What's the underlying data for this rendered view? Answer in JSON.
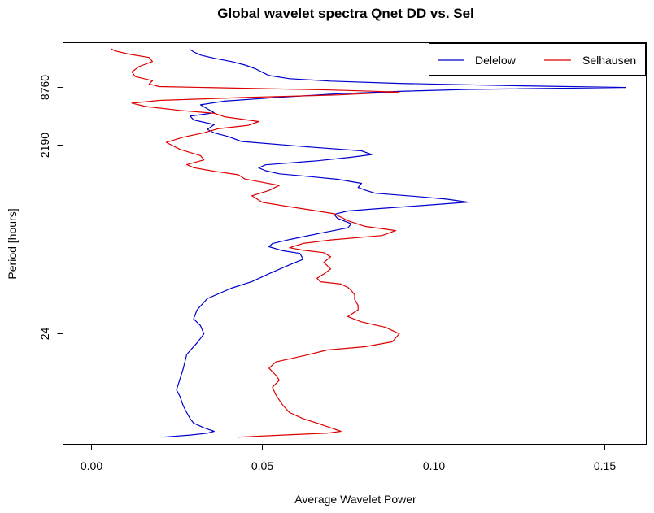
{
  "chart_data": {
    "type": "line",
    "title": "Global wavelet spectra  Qnet DD vs. Sel",
    "xlabel": "Average Wavelet Power",
    "ylabel": "Period [hours]",
    "xlim": [
      -0.008,
      0.162
    ],
    "xticks": [
      {
        "value": 0.0,
        "label": "0.00"
      },
      {
        "value": 0.05,
        "label": "0.05"
      },
      {
        "value": 0.1,
        "label": "0.10"
      },
      {
        "value": 0.15,
        "label": "0.15"
      }
    ],
    "yscale": "log2",
    "ylim": [
      1.7,
      25000
    ],
    "yticks": [
      {
        "value": 24,
        "label": "24"
      },
      {
        "value": 2190,
        "label": "2190"
      },
      {
        "value": 8760,
        "label": "8760"
      }
    ],
    "grid": false,
    "legend_position": "top-right",
    "series": [
      {
        "name": "Delelow",
        "color": "#0000cc",
        "points": [
          [
            0.021,
            2.0
          ],
          [
            0.029,
            2.1
          ],
          [
            0.034,
            2.2
          ],
          [
            0.036,
            2.3
          ],
          [
            0.033,
            2.5
          ],
          [
            0.03,
            2.8
          ],
          [
            0.029,
            3.1
          ],
          [
            0.028,
            3.6
          ],
          [
            0.027,
            4.2
          ],
          [
            0.026,
            5.3
          ],
          [
            0.025,
            6.2
          ],
          [
            0.026,
            8.0
          ],
          [
            0.027,
            10.4
          ],
          [
            0.028,
            14.5
          ],
          [
            0.031,
            19.1
          ],
          [
            0.033,
            23.7
          ],
          [
            0.032,
            28.8
          ],
          [
            0.03,
            33.9
          ],
          [
            0.031,
            42.1
          ],
          [
            0.034,
            55.1
          ],
          [
            0.041,
            70.7
          ],
          [
            0.047,
            82.8
          ],
          [
            0.052,
            100.0
          ],
          [
            0.058,
            123.7
          ],
          [
            0.062,
            141.5
          ],
          [
            0.061,
            162.7
          ],
          [
            0.056,
            173.3
          ],
          [
            0.052,
            190.7
          ],
          [
            0.053,
            205.7
          ],
          [
            0.058,
            226.9
          ],
          [
            0.067,
            264.2
          ],
          [
            0.075,
            300.4
          ],
          [
            0.076,
            330.6
          ],
          [
            0.072,
            376.4
          ],
          [
            0.071,
            414.3
          ],
          [
            0.075,
            449.4
          ],
          [
            0.083,
            472.5
          ],
          [
            0.096,
            509.7
          ],
          [
            0.11,
            555.1
          ],
          [
            0.104,
            595.7
          ],
          [
            0.094,
            639.4
          ],
          [
            0.083,
            686.0
          ],
          [
            0.08,
            739.9
          ],
          [
            0.078,
            788.8
          ],
          [
            0.079,
            870.2
          ],
          [
            0.072,
            960.2
          ],
          [
            0.063,
            1032.0
          ],
          [
            0.055,
            1092.7
          ],
          [
            0.051,
            1176.7
          ],
          [
            0.049,
            1261.2
          ],
          [
            0.051,
            1356.8
          ],
          [
            0.066,
            1493.0
          ],
          [
            0.076,
            1626.8
          ],
          [
            0.082,
            1734.0
          ],
          [
            0.079,
            1897.0
          ],
          [
            0.062,
            2104.2
          ],
          [
            0.044,
            2371.3
          ],
          [
            0.04,
            2674.3
          ],
          [
            0.036,
            2917.7
          ],
          [
            0.034,
            3171.0
          ],
          [
            0.036,
            3555.6
          ],
          [
            0.03,
            3976.2
          ],
          [
            0.029,
            4349.8
          ],
          [
            0.036,
            4719.3
          ],
          [
            0.034,
            5175.2
          ],
          [
            0.032,
            5705.2
          ],
          [
            0.039,
            6232.2
          ],
          [
            0.055,
            6822.1
          ],
          [
            0.072,
            7426.6
          ],
          [
            0.09,
            7861.4
          ],
          [
            0.11,
            8237.2
          ],
          [
            0.156,
            8641.8
          ],
          [
            0.12,
            9053.6
          ],
          [
            0.09,
            9525.4
          ],
          [
            0.07,
            10059.4
          ],
          [
            0.058,
            10660.6
          ],
          [
            0.052,
            11496.3
          ],
          [
            0.05,
            12461.9
          ],
          [
            0.048,
            13547.1
          ],
          [
            0.045,
            14785.1
          ],
          [
            0.041,
            16083.3
          ],
          [
            0.036,
            17385.1
          ],
          [
            0.032,
            18785.5
          ],
          [
            0.03,
            20240.7
          ],
          [
            0.029,
            21416.5
          ]
        ]
      },
      {
        "name": "Selhausen",
        "color": "#dd0000",
        "points": [
          [
            0.043,
            2.0
          ],
          [
            0.056,
            2.1
          ],
          [
            0.069,
            2.2
          ],
          [
            0.073,
            2.3
          ],
          [
            0.07,
            2.5
          ],
          [
            0.066,
            2.8
          ],
          [
            0.062,
            3.1
          ],
          [
            0.058,
            3.6
          ],
          [
            0.056,
            4.3
          ],
          [
            0.054,
            5.5
          ],
          [
            0.053,
            6.6
          ],
          [
            0.055,
            7.8
          ],
          [
            0.054,
            8.8
          ],
          [
            0.052,
            10.4
          ],
          [
            0.054,
            12.1
          ],
          [
            0.062,
            14.0
          ],
          [
            0.069,
            16.1
          ],
          [
            0.08,
            17.4
          ],
          [
            0.088,
            19.6
          ],
          [
            0.09,
            23.7
          ],
          [
            0.086,
            27.7
          ],
          [
            0.079,
            31.6
          ],
          [
            0.075,
            35.8
          ],
          [
            0.078,
            42.1
          ],
          [
            0.078,
            46.9
          ],
          [
            0.077,
            53.9
          ],
          [
            0.077,
            60.4
          ],
          [
            0.076,
            67.0
          ],
          [
            0.075,
            71.9
          ],
          [
            0.073,
            78.0
          ],
          [
            0.067,
            82.4
          ],
          [
            0.066,
            89.7
          ],
          [
            0.068,
            99.3
          ],
          [
            0.07,
            111.8
          ],
          [
            0.068,
            131.6
          ],
          [
            0.07,
            150.1
          ],
          [
            0.068,
            165.6
          ],
          [
            0.062,
            175.5
          ],
          [
            0.058,
            186.4
          ],
          [
            0.062,
            206.6
          ],
          [
            0.07,
            224.8
          ],
          [
            0.085,
            249.7
          ],
          [
            0.089,
            280.7
          ],
          [
            0.08,
            310.9
          ],
          [
            0.075,
            356.4
          ],
          [
            0.071,
            420.1
          ],
          [
            0.064,
            461.8
          ],
          [
            0.057,
            504.1
          ],
          [
            0.05,
            553.6
          ],
          [
            0.047,
            646.5
          ],
          [
            0.052,
            733.9
          ],
          [
            0.055,
            826.9
          ],
          [
            0.05,
            892.8
          ],
          [
            0.045,
            964.9
          ],
          [
            0.043,
            1069.7
          ],
          [
            0.036,
            1160.4
          ],
          [
            0.03,
            1266.6
          ],
          [
            0.028,
            1363.7
          ],
          [
            0.033,
            1525.0
          ],
          [
            0.032,
            1691.2
          ],
          [
            0.026,
            1963.2
          ],
          [
            0.022,
            2319.4
          ],
          [
            0.027,
            2627.7
          ],
          [
            0.033,
            2918.8
          ],
          [
            0.037,
            3214.5
          ],
          [
            0.046,
            3492.5
          ],
          [
            0.049,
            3824.1
          ],
          [
            0.039,
            4285.7
          ],
          [
            0.036,
            4658.7
          ],
          [
            0.026,
            4985.8
          ],
          [
            0.016,
            5478.4
          ],
          [
            0.012,
            5936.9
          ],
          [
            0.02,
            6337.6
          ],
          [
            0.045,
            6799.6
          ],
          [
            0.072,
            7227.3
          ],
          [
            0.09,
            7739.7
          ],
          [
            0.07,
            8133.3
          ],
          [
            0.045,
            8477.7
          ],
          [
            0.02,
            8819.4
          ],
          [
            0.017,
            9373.9
          ],
          [
            0.018,
            10144.5
          ],
          [
            0.013,
            11203.7
          ],
          [
            0.012,
            12530.7
          ],
          [
            0.014,
            14208.6
          ],
          [
            0.018,
            16068.3
          ],
          [
            0.017,
            17711.6
          ],
          [
            0.011,
            19239.0
          ],
          [
            0.007,
            20722.8
          ],
          [
            0.006,
            21786.4
          ]
        ]
      }
    ]
  }
}
